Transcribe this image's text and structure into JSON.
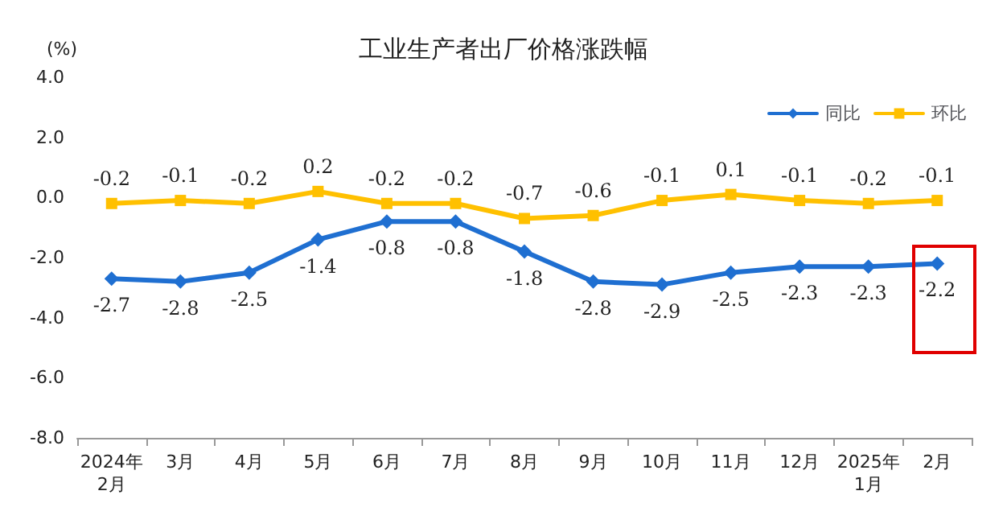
{
  "chart_data": {
    "type": "line",
    "title": "工业生产者出厂价格涨跌幅",
    "ylabel": "(%)",
    "categories": [
      "2024年\n2月",
      "3月",
      "4月",
      "5月",
      "6月",
      "7月",
      "8月",
      "9月",
      "10月",
      "11月",
      "12月",
      "2025年\n1月",
      "2月"
    ],
    "series": [
      {
        "name": "同比",
        "color": "#1f6fd1",
        "marker": "diamond",
        "values": [
          -2.7,
          -2.8,
          -2.5,
          -1.4,
          -0.8,
          -0.8,
          -1.8,
          -2.8,
          -2.9,
          -2.5,
          -2.3,
          -2.3,
          -2.2
        ]
      },
      {
        "name": "环比",
        "color": "#ffc000",
        "marker": "square",
        "values": [
          -0.2,
          -0.1,
          -0.2,
          0.2,
          -0.2,
          -0.2,
          -0.7,
          -0.6,
          -0.1,
          0.1,
          -0.1,
          -0.2,
          -0.1
        ]
      }
    ],
    "ylim": [
      -8,
      4
    ],
    "yticks": [
      {
        "value": -8,
        "label": "-8.0"
      },
      {
        "value": -6,
        "label": "-6.0"
      },
      {
        "value": -4,
        "label": "-4.0"
      },
      {
        "value": -2,
        "label": "-2.0"
      },
      {
        "value": 0,
        "label": "0.0"
      },
      {
        "value": 2,
        "label": "2.0"
      },
      {
        "value": 4,
        "label": "4.0"
      }
    ],
    "data_labels": true,
    "legend": "top right",
    "grid": false,
    "line_style": "solid"
  }
}
